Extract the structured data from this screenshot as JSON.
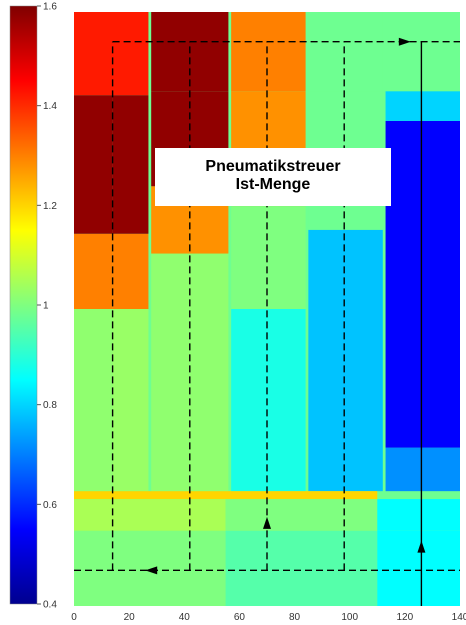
{
  "chart_data": {
    "type": "heatmap",
    "title_line1": "Pneumatikstreuer",
    "title_line2": "Ist-Menge",
    "xlim": [
      0,
      140
    ],
    "ylim": [
      0,
      300
    ],
    "x_ticks": [
      0,
      20,
      40,
      60,
      80,
      100,
      120,
      140
    ],
    "x_tick_labels": [
      "0",
      "20",
      "40",
      "60",
      "80",
      "100",
      "120",
      "140"
    ],
    "colorbar": {
      "range": [
        0.4,
        1.6
      ],
      "ticks": [
        "0.4",
        "0.6",
        "0.8",
        "1",
        "1.2",
        "1.4",
        "1.6"
      ],
      "tick_values": [
        0.4,
        0.6,
        0.8,
        1.0,
        1.2,
        1.4,
        1.6
      ]
    },
    "cells": [
      {
        "x0": 0,
        "x1": 55,
        "y0": 262,
        "y1": 300,
        "value": 1.0
      },
      {
        "x0": 55,
        "x1": 110,
        "y0": 262,
        "y1": 300,
        "value": 0.95
      },
      {
        "x0": 110,
        "x1": 140,
        "y0": 262,
        "y1": 300,
        "value": 0.85
      },
      {
        "x0": 0,
        "x1": 55,
        "y0": 246,
        "y1": 262,
        "value": 1.05
      },
      {
        "x0": 55,
        "x1": 110,
        "y0": 246,
        "y1": 262,
        "value": 1.0
      },
      {
        "x0": 110,
        "x1": 140,
        "y0": 246,
        "y1": 262,
        "value": 0.85
      },
      {
        "x0": 0,
        "x1": 14,
        "y0": 150,
        "y1": 242,
        "value": 1.02
      },
      {
        "x0": 14,
        "x1": 27,
        "y0": 150,
        "y1": 242,
        "value": 1.03
      },
      {
        "x0": 0,
        "x1": 14,
        "y0": 112,
        "y1": 150,
        "value": 1.3
      },
      {
        "x0": 14,
        "x1": 27,
        "y0": 112,
        "y1": 150,
        "value": 1.3
      },
      {
        "x0": 0,
        "x1": 14,
        "y0": 42,
        "y1": 112,
        "value": 1.58
      },
      {
        "x0": 14,
        "x1": 27,
        "y0": 42,
        "y1": 112,
        "value": 1.58
      },
      {
        "x0": 0,
        "x1": 27,
        "y0": 0,
        "y1": 42,
        "value": 1.42
      },
      {
        "x0": 28,
        "x1": 42,
        "y0": 122,
        "y1": 242,
        "value": 1.02
      },
      {
        "x0": 42,
        "x1": 56,
        "y0": 122,
        "y1": 242,
        "value": 1.02
      },
      {
        "x0": 28,
        "x1": 42,
        "y0": 88,
        "y1": 122,
        "value": 1.28
      },
      {
        "x0": 42,
        "x1": 56,
        "y0": 88,
        "y1": 122,
        "value": 1.28
      },
      {
        "x0": 28,
        "x1": 56,
        "y0": 40,
        "y1": 88,
        "value": 1.58
      },
      {
        "x0": 28,
        "x1": 56,
        "y0": 0,
        "y1": 40,
        "value": 1.58
      },
      {
        "x0": 57,
        "x1": 84,
        "y0": 150,
        "y1": 242,
        "value": 0.88
      },
      {
        "x0": 57,
        "x1": 84,
        "y0": 98,
        "y1": 150,
        "value": 1.0
      },
      {
        "x0": 57,
        "x1": 84,
        "y0": 40,
        "y1": 98,
        "value": 1.28
      },
      {
        "x0": 57,
        "x1": 84,
        "y0": 0,
        "y1": 40,
        "value": 1.3
      },
      {
        "x0": 85,
        "x1": 112,
        "y0": 110,
        "y1": 242,
        "value": 0.78
      },
      {
        "x0": 85,
        "x1": 112,
        "y0": 40,
        "y1": 110,
        "value": 0.98
      },
      {
        "x0": 85,
        "x1": 112,
        "y0": 0,
        "y1": 40,
        "value": 0.98
      },
      {
        "x0": 113,
        "x1": 140,
        "y0": 220,
        "y1": 242,
        "value": 0.72
      },
      {
        "x0": 113,
        "x1": 140,
        "y0": 55,
        "y1": 220,
        "value": 0.55
      },
      {
        "x0": 113,
        "x1": 140,
        "y0": 40,
        "y1": 55,
        "value": 0.8
      },
      {
        "x0": 113,
        "x1": 140,
        "y0": 0,
        "y1": 40,
        "value": 0.98
      },
      {
        "x0": 0,
        "x1": 110,
        "y0": 242,
        "y1": 246,
        "value": 1.2
      }
    ],
    "path_segments": [
      {
        "x1": 0,
        "y1": 282,
        "x2": 140,
        "y2": 282,
        "dash": true,
        "arrow_at": 28
      },
      {
        "x1": 14,
        "y1": 282,
        "x2": 14,
        "y2": 15,
        "dash": true
      },
      {
        "x1": 42,
        "y1": 282,
        "x2": 42,
        "y2": 15,
        "dash": true
      },
      {
        "x1": 70,
        "y1": 282,
        "x2": 70,
        "y2": 15,
        "dash": true,
        "arrow_at_y": 258
      },
      {
        "x1": 98,
        "y1": 282,
        "x2": 98,
        "y2": 15,
        "dash": true
      },
      {
        "x1": 126,
        "y1": 300,
        "x2": 126,
        "y2": 15,
        "dash": false,
        "arrow_at_y": 270
      },
      {
        "x1": 14,
        "y1": 15,
        "x2": 140,
        "y2": 15,
        "dash": true,
        "arrow_at": 120
      }
    ]
  }
}
